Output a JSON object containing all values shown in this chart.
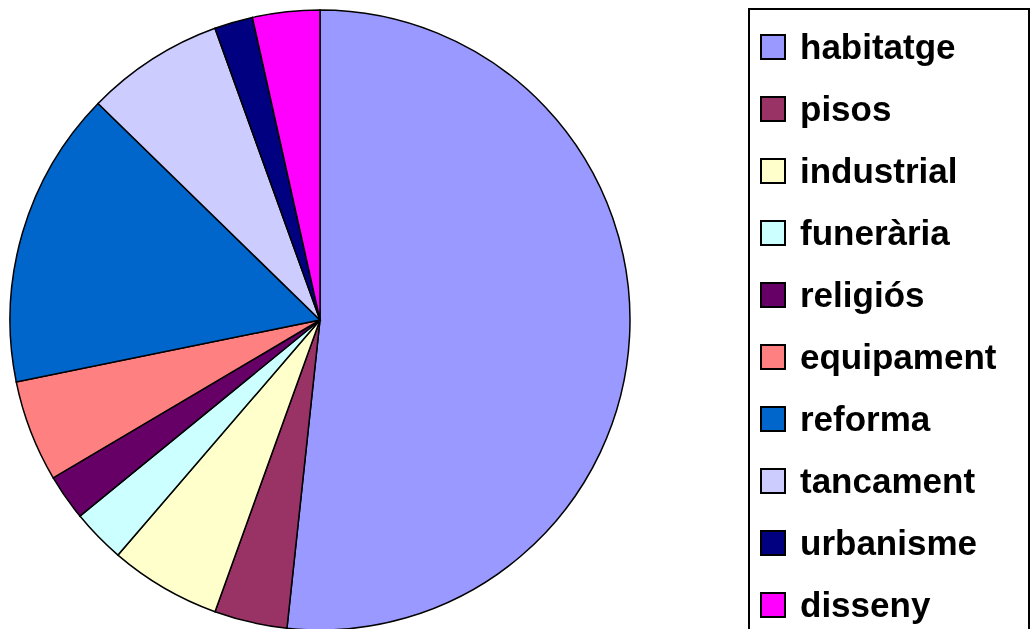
{
  "chart_data": {
    "type": "pie",
    "categories": [
      "habitatge",
      "pisos",
      "industrial",
      "funerària",
      "religiós",
      "equipament",
      "reforma",
      "tancament",
      "urbanisme",
      "disseny"
    ],
    "values": [
      51.7,
      3.8,
      5.8,
      2.8,
      2.4,
      5.3,
      15.5,
      7.2,
      2.0,
      3.5
    ],
    "colors": [
      "#9999ff",
      "#993366",
      "#ffffcc",
      "#ccffff",
      "#660066",
      "#ff8080",
      "#0066cc",
      "#ccccff",
      "#000080",
      "#ff00ff"
    ],
    "legend": "right"
  }
}
